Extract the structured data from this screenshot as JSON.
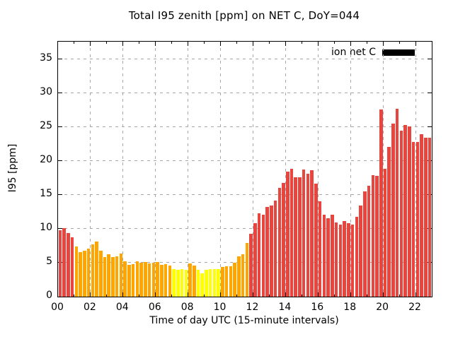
{
  "title": "Total I95 zenith [ppm] on NET C, DoY=044",
  "legend": {
    "label": "ion net C",
    "swatch_color": "#000000"
  },
  "axes": {
    "ylabel": "I95 [ppm]",
    "xlabel": "Time of day UTC (15-minute intervals)",
    "ylim": [
      0,
      37.6
    ],
    "yticks": [
      0,
      5,
      10,
      15,
      20,
      25,
      30,
      35
    ],
    "xlim_hours": [
      0,
      23
    ],
    "xtick_hours": [
      0,
      2,
      4,
      6,
      8,
      10,
      12,
      14,
      16,
      18,
      20,
      22
    ],
    "xtick_labels": [
      "00",
      "02",
      "04",
      "06",
      "08",
      "10",
      "12",
      "14",
      "16",
      "18",
      "20",
      "22"
    ],
    "minor_xtick_hours": [
      1,
      3,
      5,
      7,
      9,
      11,
      13,
      15,
      17,
      19,
      21
    ],
    "grid": true
  },
  "colors": {
    "red": "#e8453e",
    "orange": "#ffa500",
    "yellow": "#ffff00",
    "grid": "#a8a8a8",
    "axis": "#000000",
    "background": "#ffffff"
  },
  "chart_data": {
    "type": "bar",
    "series_name": "ion net C",
    "interval_minutes": 15,
    "x": [
      "00:00",
      "00:15",
      "00:30",
      "00:45",
      "01:00",
      "01:15",
      "01:30",
      "01:45",
      "02:00",
      "02:15",
      "02:30",
      "02:45",
      "03:00",
      "03:15",
      "03:30",
      "03:45",
      "04:00",
      "04:15",
      "04:30",
      "04:45",
      "05:00",
      "05:15",
      "05:30",
      "05:45",
      "06:00",
      "06:15",
      "06:30",
      "06:45",
      "07:00",
      "07:15",
      "07:30",
      "07:45",
      "08:00",
      "08:15",
      "08:30",
      "08:45",
      "09:00",
      "09:15",
      "09:30",
      "09:45",
      "10:00",
      "10:15",
      "10:30",
      "10:45",
      "11:00",
      "11:15",
      "11:30",
      "11:45",
      "12:00",
      "12:15",
      "12:30",
      "12:45",
      "13:00",
      "13:15",
      "13:30",
      "13:45",
      "14:00",
      "14:15",
      "14:30",
      "14:45",
      "15:00",
      "15:15",
      "15:30",
      "15:45",
      "16:00",
      "16:15",
      "16:30",
      "16:45",
      "17:00",
      "17:15",
      "17:30",
      "17:45",
      "18:00",
      "18:15",
      "18:30",
      "18:45",
      "19:00",
      "19:15",
      "19:30",
      "19:45",
      "20:00",
      "20:15",
      "20:30",
      "20:45",
      "21:00",
      "21:15",
      "21:30",
      "21:45",
      "22:00",
      "22:15",
      "22:30",
      "22:45"
    ],
    "values": [
      9.8,
      10.1,
      9.4,
      8.7,
      7.4,
      6.6,
      6.8,
      7.1,
      7.7,
      8.1,
      6.8,
      5.8,
      6.2,
      5.8,
      5.9,
      6.4,
      5.2,
      4.7,
      4.8,
      5.2,
      5.0,
      5.1,
      4.9,
      5.0,
      5.1,
      4.7,
      4.8,
      4.6,
      4.1,
      4.0,
      4.1,
      4.0,
      4.9,
      4.6,
      4.0,
      3.4,
      4.0,
      4.1,
      4.1,
      4.1,
      4.4,
      4.5,
      4.5,
      5.0,
      5.9,
      6.2,
      7.9,
      9.3,
      10.8,
      12.3,
      12.1,
      13.2,
      13.4,
      14.2,
      16.0,
      16.8,
      18.4,
      18.9,
      17.6,
      17.6,
      18.8,
      18.1,
      18.6,
      16.7,
      14.1,
      12.1,
      11.6,
      12.1,
      10.9,
      10.6,
      11.1,
      10.8,
      10.6,
      11.8,
      13.4,
      15.5,
      16.4,
      17.9,
      17.8,
      27.6,
      18.9,
      22.1,
      25.5,
      27.7,
      24.5,
      25.3,
      25.1,
      22.8,
      22.8,
      24.0,
      23.4,
      23.4
    ],
    "bar_colors": [
      "red",
      "red",
      "red",
      "red",
      "orange",
      "orange",
      "orange",
      "orange",
      "orange",
      "orange",
      "orange",
      "orange",
      "orange",
      "orange",
      "orange",
      "orange",
      "orange",
      "orange",
      "orange",
      "orange",
      "orange",
      "orange",
      "orange",
      "orange",
      "orange",
      "orange",
      "orange",
      "orange",
      "yellow",
      "yellow",
      "yellow",
      "yellow",
      "orange",
      "orange",
      "yellow",
      "yellow",
      "yellow",
      "yellow",
      "yellow",
      "yellow",
      "orange",
      "orange",
      "orange",
      "orange",
      "orange",
      "orange",
      "orange",
      "red",
      "red",
      "red",
      "red",
      "red",
      "red",
      "red",
      "red",
      "red",
      "red",
      "red",
      "red",
      "red",
      "red",
      "red",
      "red",
      "red",
      "red",
      "red",
      "red",
      "red",
      "red",
      "red",
      "red",
      "red",
      "red",
      "red",
      "red",
      "red",
      "red",
      "red",
      "red",
      "red",
      "red",
      "red",
      "red",
      "red",
      "red",
      "red",
      "red",
      "red",
      "red",
      "red",
      "red",
      "red"
    ]
  }
}
